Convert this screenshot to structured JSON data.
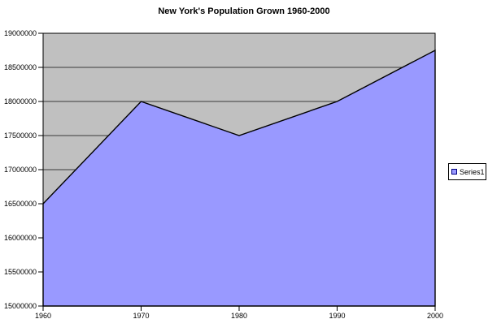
{
  "chart_data": {
    "type": "area",
    "title": "New York's Population Grown 1960-2000",
    "categories": [
      "1960",
      "1970",
      "1980",
      "1990",
      "2000"
    ],
    "series": [
      {
        "name": "Series1",
        "values": [
          16500000,
          18000000,
          17500000,
          18000000,
          18750000
        ]
      }
    ],
    "xlabel": "",
    "ylabel": "",
    "ylim": [
      15000000,
      19000000
    ],
    "ytick_step": 500000,
    "ytick_labels": [
      "15000000",
      "15500000",
      "16000000",
      "16500000",
      "17000000",
      "17500000",
      "18000000",
      "18500000",
      "19000000"
    ],
    "grid": true,
    "legend_position": "right",
    "legend_entries": [
      "Series1"
    ],
    "colors": {
      "area_fill": "#9999FF",
      "series_border": "#000000",
      "plot_bg": "#C0C0C0",
      "gridline": "#3A3A3A",
      "axis": "#000000",
      "chart_bg": "#FFFFFF",
      "legend_marker_border": "#000080"
    }
  }
}
